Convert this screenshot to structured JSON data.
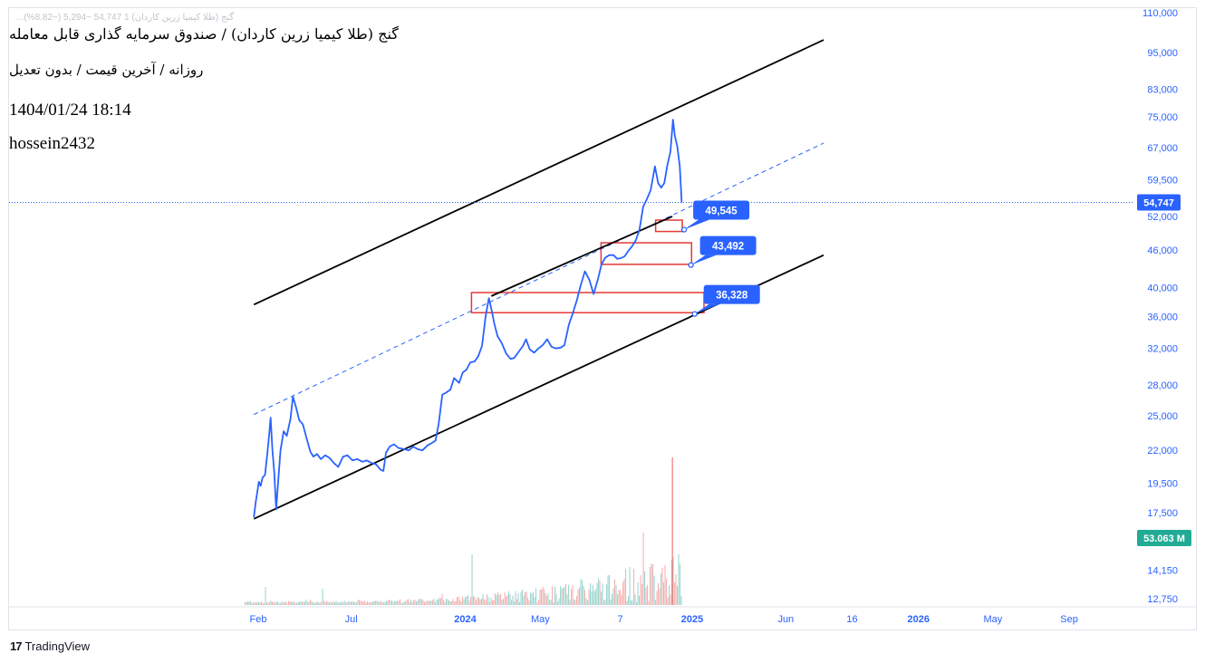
{
  "header": {
    "ghost_text": "...گنج (طلا کیمیا زرین کاردان) 1  54,747  −5,294  (−8.82%)",
    "title": "گنج (طلا کیمیا زرین کاردان) / صندوق سرمایه گذاری قابل معامله",
    "subtitle": "روزانه / آخرین قیمت / بدون تعدیل",
    "datetime": "1404/01/24 18:14",
    "author": "hossein2432"
  },
  "branding": {
    "logo_mark": "17",
    "logo_text": "TradingView"
  },
  "colors": {
    "price_line": "#2962ff",
    "channel": "#000000",
    "zone_border": "#e53935",
    "label_bg": "#2962ff",
    "vol_up": "#26a69a",
    "vol_down": "#ef5350",
    "volume_badge": "#22ab94",
    "axis_text": "#2962ff"
  },
  "chart_data": {
    "type": "line",
    "scale": "log",
    "ylim": [
      12000,
      112000
    ],
    "y_ticks": [
      "110,000",
      "95,000",
      "83,000",
      "75,000",
      "67,000",
      "59,500",
      "52,000",
      "46,000",
      "40,000",
      "36,000",
      "32,000",
      "28,000",
      "25,000",
      "22,000",
      "19,500",
      "17,500",
      "14,150",
      "12,750"
    ],
    "x_ticks": [
      {
        "label": "Feb",
        "date": "2023-02-01",
        "bold": false
      },
      {
        "label": "Jul",
        "date": "2023-07-01",
        "bold": false
      },
      {
        "label": "2024",
        "date": "2024-01-01",
        "bold": true
      },
      {
        "label": "May",
        "date": "2024-05-01",
        "bold": false
      },
      {
        "label": "7",
        "date": "2024-09-07",
        "bold": false
      },
      {
        "label": "2025",
        "date": "2025-01-01",
        "bold": true
      },
      {
        "label": "Jun",
        "date": "2025-06-01",
        "bold": false
      },
      {
        "label": "16",
        "date": "2025-09-16",
        "bold": false
      },
      {
        "label": "2026",
        "date": "2026-01-01",
        "bold": true
      },
      {
        "label": "May",
        "date": "2026-05-01",
        "bold": false
      },
      {
        "label": "Sep",
        "date": "2026-09-01",
        "bold": false
      }
    ],
    "last_price_label": "54,747",
    "last_price": 54747,
    "volume_label": "53.063 M",
    "series": [
      {
        "values": [
          [
            "2023-01-25",
            17200
          ],
          [
            "2023-01-28",
            18200
          ],
          [
            "2023-02-02",
            19600
          ],
          [
            "2023-02-05",
            19300
          ],
          [
            "2023-02-08",
            19900
          ],
          [
            "2023-02-12",
            20100
          ],
          [
            "2023-02-16",
            21900
          ],
          [
            "2023-02-19",
            23500
          ],
          [
            "2023-02-21",
            24800
          ],
          [
            "2023-02-24",
            22000
          ],
          [
            "2023-02-27",
            20200
          ],
          [
            "2023-03-02",
            17700
          ],
          [
            "2023-03-05",
            19500
          ],
          [
            "2023-03-09",
            22000
          ],
          [
            "2023-03-14",
            23600
          ],
          [
            "2023-03-19",
            23200
          ],
          [
            "2023-03-25",
            24700
          ],
          [
            "2023-03-29",
            26800
          ],
          [
            "2023-04-03",
            25800
          ],
          [
            "2023-04-08",
            24600
          ],
          [
            "2023-04-14",
            24200
          ],
          [
            "2023-04-20",
            23000
          ],
          [
            "2023-04-26",
            21900
          ],
          [
            "2023-05-01",
            21500
          ],
          [
            "2023-05-07",
            21700
          ],
          [
            "2023-05-13",
            21300
          ],
          [
            "2023-05-20",
            21600
          ],
          [
            "2023-05-27",
            21400
          ],
          [
            "2023-06-03",
            21000
          ],
          [
            "2023-06-10",
            20700
          ],
          [
            "2023-06-18",
            21500
          ],
          [
            "2023-06-25",
            21600
          ],
          [
            "2023-07-03",
            21200
          ],
          [
            "2023-07-11",
            21300
          ],
          [
            "2023-07-19",
            21100
          ],
          [
            "2023-07-26",
            21200
          ],
          [
            "2023-08-03",
            21000
          ],
          [
            "2023-08-10",
            20900
          ],
          [
            "2023-08-17",
            20500
          ],
          [
            "2023-08-22",
            20400
          ],
          [
            "2023-08-26",
            21800
          ],
          [
            "2023-09-01",
            22300
          ],
          [
            "2023-09-08",
            22500
          ],
          [
            "2023-09-15",
            22200
          ],
          [
            "2023-09-24",
            22100
          ],
          [
            "2023-10-02",
            22000
          ],
          [
            "2023-10-09",
            22300
          ],
          [
            "2023-10-16",
            22100
          ],
          [
            "2023-10-24",
            22000
          ],
          [
            "2023-11-01",
            22400
          ],
          [
            "2023-11-08",
            22600
          ],
          [
            "2023-11-14",
            22800
          ],
          [
            "2023-11-19",
            24200
          ],
          [
            "2023-11-25",
            27000
          ],
          [
            "2023-12-01",
            27200
          ],
          [
            "2023-12-08",
            27500
          ],
          [
            "2023-12-14",
            28700
          ],
          [
            "2023-12-22",
            28200
          ],
          [
            "2023-12-28",
            29300
          ],
          [
            "2024-01-03",
            29600
          ],
          [
            "2024-01-09",
            30400
          ],
          [
            "2024-01-16",
            30500
          ],
          [
            "2024-01-22",
            31100
          ],
          [
            "2024-01-28",
            32300
          ],
          [
            "2024-02-03",
            36100
          ],
          [
            "2024-02-08",
            38500
          ],
          [
            "2024-02-12",
            37000
          ],
          [
            "2024-02-17",
            35000
          ],
          [
            "2024-02-22",
            33500
          ],
          [
            "2024-02-29",
            32600
          ],
          [
            "2024-03-07",
            31400
          ],
          [
            "2024-03-14",
            30800
          ],
          [
            "2024-03-20",
            30900
          ],
          [
            "2024-03-27",
            31600
          ],
          [
            "2024-04-03",
            32300
          ],
          [
            "2024-04-08",
            33100
          ],
          [
            "2024-04-14",
            31900
          ],
          [
            "2024-04-21",
            31500
          ],
          [
            "2024-04-28",
            32000
          ],
          [
            "2024-05-05",
            32400
          ],
          [
            "2024-05-12",
            33100
          ],
          [
            "2024-05-19",
            32200
          ],
          [
            "2024-05-26",
            32000
          ],
          [
            "2024-06-03",
            32100
          ],
          [
            "2024-06-09",
            32400
          ],
          [
            "2024-06-16",
            34900
          ],
          [
            "2024-06-22",
            36300
          ],
          [
            "2024-06-29",
            38200
          ],
          [
            "2024-07-05",
            40300
          ],
          [
            "2024-07-12",
            42500
          ],
          [
            "2024-07-19",
            41200
          ],
          [
            "2024-07-26",
            39100
          ],
          [
            "2024-08-02",
            41300
          ],
          [
            "2024-08-08",
            43700
          ],
          [
            "2024-08-14",
            44700
          ],
          [
            "2024-08-20",
            45100
          ],
          [
            "2024-08-27",
            45100
          ],
          [
            "2024-09-02",
            44500
          ],
          [
            "2024-09-08",
            44600
          ],
          [
            "2024-09-14",
            44900
          ],
          [
            "2024-09-20",
            45800
          ],
          [
            "2024-09-26",
            46600
          ],
          [
            "2024-10-02",
            47600
          ],
          [
            "2024-10-08",
            49500
          ],
          [
            "2024-10-14",
            53900
          ],
          [
            "2024-10-20",
            55400
          ],
          [
            "2024-10-26",
            57300
          ],
          [
            "2024-11-02",
            62500
          ],
          [
            "2024-11-07",
            58800
          ],
          [
            "2024-11-12",
            57800
          ],
          [
            "2024-11-17",
            58800
          ],
          [
            "2024-11-22",
            62800
          ],
          [
            "2024-11-27",
            66000
          ],
          [
            "2024-12-01",
            74200
          ],
          [
            "2024-12-04",
            70000
          ],
          [
            "2024-12-08",
            67200
          ],
          [
            "2024-12-12",
            62500
          ],
          [
            "2024-12-15",
            54747
          ]
        ]
      }
    ],
    "channel_lines": [
      [
        [
          "2023-01-25",
          17100
        ],
        [
          "2025-08-01",
          45100
        ]
      ],
      [
        [
          "2023-01-25",
          37600
        ],
        [
          "2025-08-01",
          99500
        ]
      ],
      [
        [
          "2024-02-12",
          38800
        ],
        [
          "2024-11-30",
          52000
        ]
      ]
    ],
    "trend_dashed": [
      [
        "2023-01-25",
        25100
      ],
      [
        "2025-08-01",
        68100
      ]
    ],
    "zones": [
      {
        "from": "2024-11-03",
        "to": "2024-12-16",
        "low": 49200,
        "high": 51300
      },
      {
        "from": "2024-08-07",
        "to": "2024-12-31",
        "low": 43600,
        "high": 47200
      },
      {
        "from": "2024-01-11",
        "to": "2025-01-20",
        "low": 36500,
        "high": 39300
      }
    ],
    "price_labels": [
      {
        "label": "49,545",
        "value": 49545,
        "anchor_date": "2024-12-19"
      },
      {
        "label": "43,492",
        "value": 43492,
        "anchor_date": "2024-12-30"
      },
      {
        "label": "36,328",
        "value": 36328,
        "anchor_date": "2025-01-05"
      }
    ],
    "volume_spike": 53.063
  }
}
